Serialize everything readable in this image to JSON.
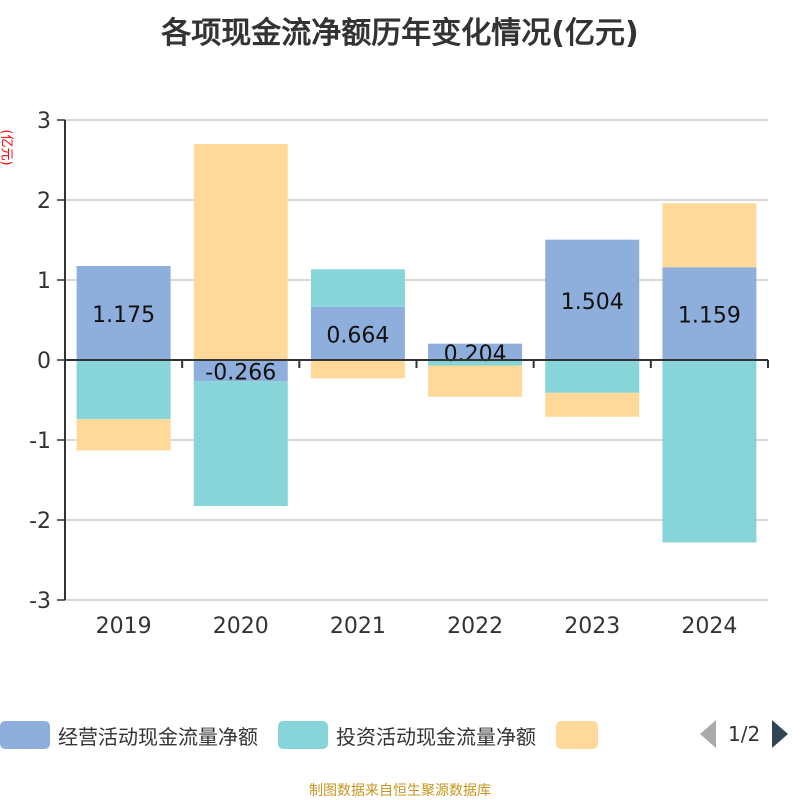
{
  "chart_data": {
    "type": "bar",
    "stacked": true,
    "title": "各项现金流净额历年变化情况(亿元)",
    "ylabel": "(亿元)",
    "ylim": [
      -3,
      3
    ],
    "yticks": [
      "3",
      "2",
      "1",
      "0",
      "-1",
      "-2",
      "-3"
    ],
    "categories": [
      "2019",
      "2020",
      "2021",
      "2022",
      "2023",
      "2024"
    ],
    "series": [
      {
        "name": "经营活动现金流量净额",
        "color": "#8eaedb",
        "values": [
          1.175,
          -0.266,
          0.664,
          0.204,
          1.504,
          1.159
        ],
        "labels": [
          "1.175",
          "-0.266",
          "0.664",
          "0.204",
          "1.504",
          "1.159"
        ]
      },
      {
        "name": "投资活动现金流量净额",
        "color": "#87d5d8",
        "values": [
          -0.74,
          -1.56,
          0.47,
          -0.07,
          -0.41,
          -2.28
        ]
      },
      {
        "name": "",
        "color": "#ffd99a",
        "values": [
          -0.39,
          2.7,
          -0.23,
          -0.39,
          -0.3,
          0.8
        ]
      }
    ],
    "legend_position": "bottom",
    "grid": true
  },
  "legend": {
    "page": "1/2"
  },
  "footer": "制图数据来自恒生聚源数据库"
}
